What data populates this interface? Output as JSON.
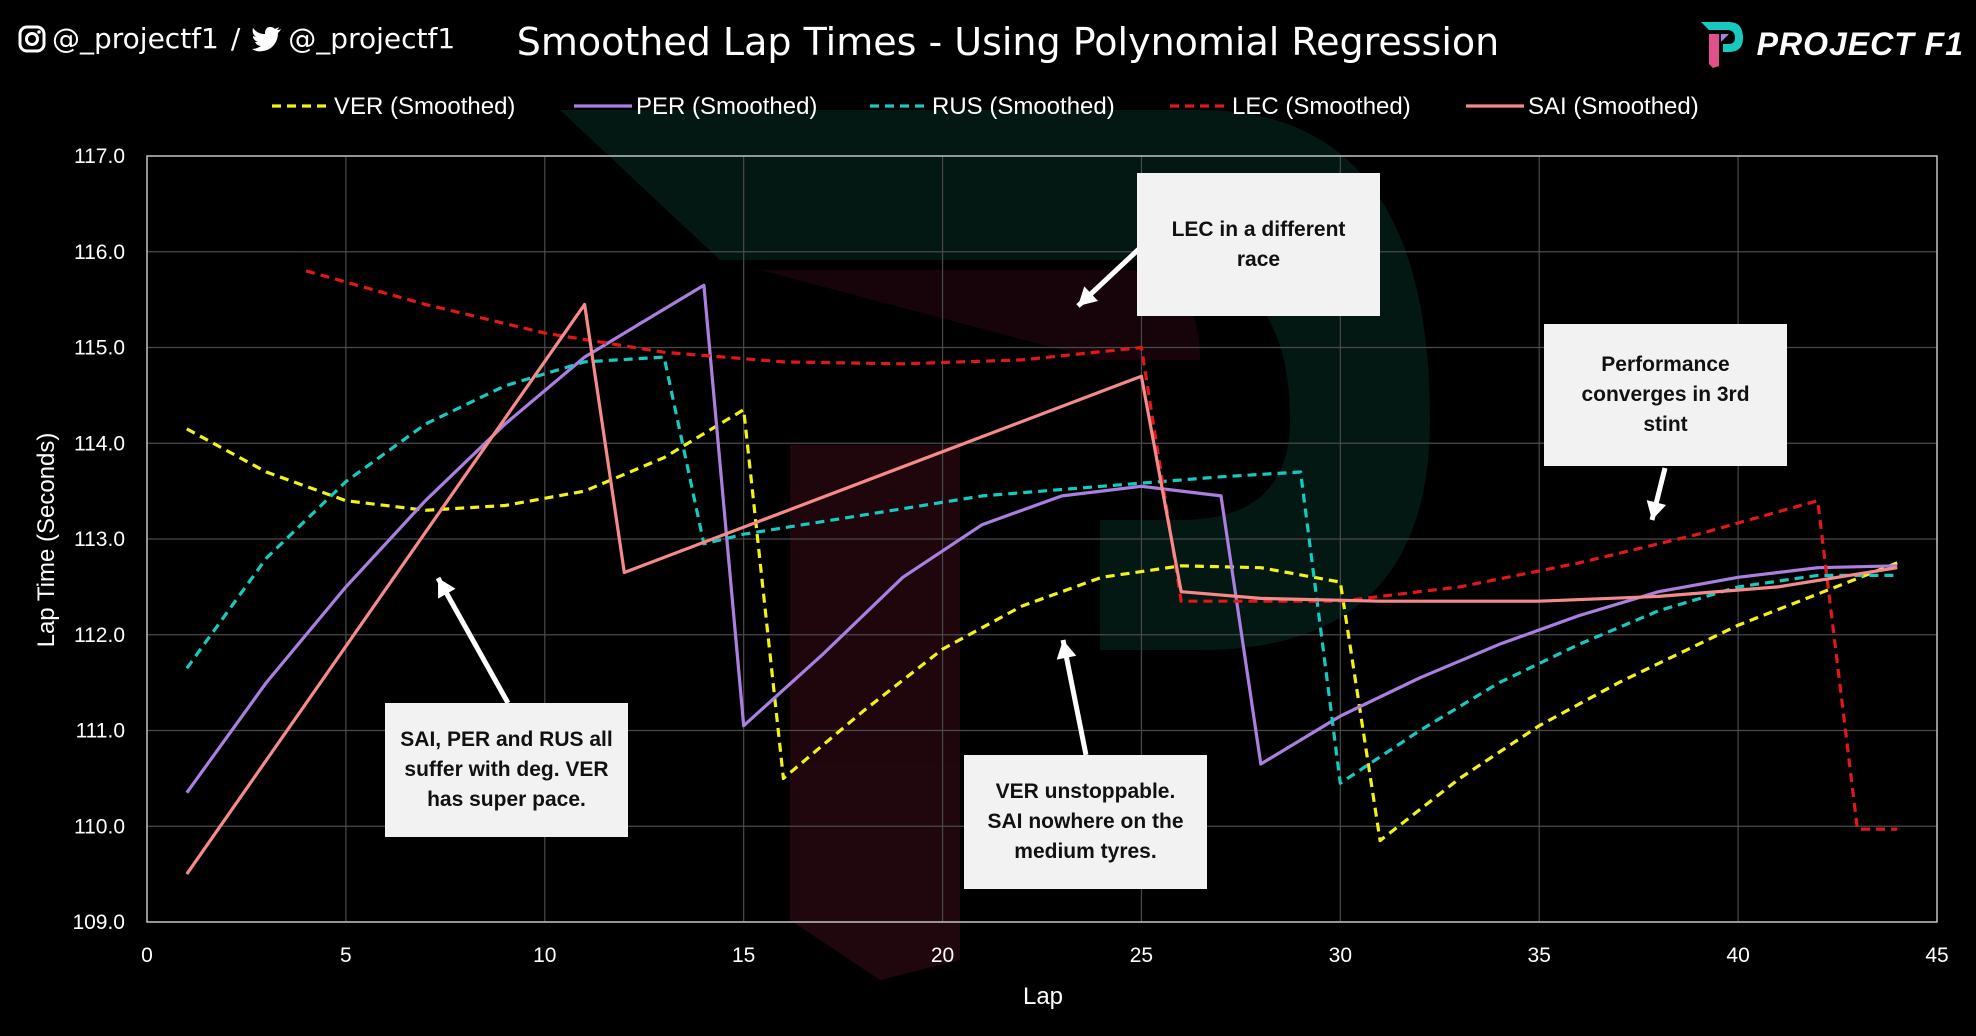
{
  "header": {
    "social_instagram": "@_projectf1",
    "separator": "/",
    "social_twitter": "@_projectf1",
    "brand": "PROJECT F1"
  },
  "colors": {
    "background": "#000000",
    "grid": "#4a4a4a",
    "axis": "#bfbfbf",
    "VER": "#f2f21a",
    "PER": "#a97fe0",
    "RUS": "#17c9bf",
    "LEC": "#e01818",
    "SAI": "#f58a8a"
  },
  "chart_data": {
    "type": "line",
    "title": "Smoothed Lap Times - Using Polynomial Regression",
    "xlabel": "Lap",
    "ylabel": "Lap Time (Seconds)",
    "xlim": [
      0,
      45
    ],
    "ylim": [
      109.0,
      117.0
    ],
    "x_ticks": [
      "0",
      "5",
      "10",
      "15",
      "20",
      "25",
      "30",
      "35",
      "40",
      "45"
    ],
    "y_ticks": [
      "109.0",
      "110.0",
      "111.0",
      "112.0",
      "113.0",
      "114.0",
      "115.0",
      "116.0",
      "117.0"
    ],
    "grid": true,
    "legend_position": "top",
    "series": [
      {
        "name": "VER (Smoothed)",
        "key": "VER",
        "style": "dashed",
        "x": [
          1,
          3,
          5,
          7,
          9,
          11,
          13,
          15,
          16,
          18,
          20,
          22,
          24,
          26,
          28,
          30,
          31,
          33,
          35,
          37,
          40,
          44
        ],
        "y": [
          114.15,
          113.7,
          113.4,
          113.3,
          113.35,
          113.5,
          113.85,
          114.35,
          110.5,
          111.2,
          111.85,
          112.3,
          112.6,
          112.72,
          112.7,
          112.55,
          109.85,
          110.5,
          111.05,
          111.5,
          112.1,
          112.75
        ]
      },
      {
        "name": "PER (Smoothed)",
        "key": "PER",
        "style": "solid",
        "x": [
          1,
          3,
          5,
          7,
          9,
          11,
          12,
          14,
          15,
          17,
          19,
          21,
          23,
          25,
          27,
          28,
          30,
          32,
          34,
          36,
          38,
          40,
          42,
          44
        ],
        "y": [
          110.35,
          111.5,
          112.5,
          113.4,
          114.2,
          114.9,
          115.15,
          115.65,
          111.05,
          111.8,
          112.6,
          113.15,
          113.45,
          113.55,
          113.45,
          110.65,
          111.15,
          111.55,
          111.9,
          112.2,
          112.45,
          112.6,
          112.7,
          112.72
        ]
      },
      {
        "name": "RUS (Smoothed)",
        "key": "RUS",
        "style": "dashed",
        "x": [
          1,
          3,
          5,
          7,
          9,
          11,
          13,
          14,
          15,
          18,
          21,
          24,
          27,
          29,
          30,
          32,
          34,
          36,
          38,
          40,
          42,
          44
        ],
        "y": [
          111.65,
          112.8,
          113.6,
          114.2,
          114.6,
          114.85,
          114.9,
          112.95,
          113.05,
          113.25,
          113.45,
          113.55,
          113.65,
          113.7,
          110.45,
          111.0,
          111.5,
          111.9,
          112.25,
          112.5,
          112.62,
          112.62
        ]
      },
      {
        "name": "LEC (Smoothed)",
        "key": "LEC",
        "style": "dashed",
        "x": [
          4,
          7,
          10,
          13,
          16,
          19,
          22,
          25,
          26,
          30,
          33,
          36,
          39,
          42,
          43,
          44
        ],
        "y": [
          115.8,
          115.45,
          115.15,
          114.95,
          114.85,
          114.83,
          114.87,
          115.0,
          112.35,
          112.35,
          112.5,
          112.75,
          113.05,
          113.4,
          109.97,
          109.97
        ]
      },
      {
        "name": "SAI (Smoothed)",
        "key": "SAI",
        "style": "solid",
        "x": [
          1,
          11,
          12,
          25,
          26,
          28,
          31,
          35,
          38,
          41,
          44
        ],
        "y": [
          109.5,
          115.45,
          112.65,
          114.7,
          112.45,
          112.38,
          112.35,
          112.35,
          112.4,
          112.5,
          112.7
        ]
      }
    ],
    "annotations": [
      {
        "text": "LEC in a different race",
        "lines": [
          "LEC in a different",
          "race"
        ]
      },
      {
        "text": "Performance converges in 3rd stint",
        "lines": [
          "Performance",
          "converges in 3rd",
          "stint"
        ]
      },
      {
        "text": "SAI, PER and RUS all suffer with deg. VER has super pace.",
        "lines": [
          "SAI, PER and RUS all",
          "suffer with deg. VER",
          "has super pace."
        ]
      },
      {
        "text": "VER unstoppable. SAI nowhere on the medium tyres.",
        "lines": [
          "VER unstoppable.",
          "SAI nowhere on the",
          "medium tyres."
        ]
      }
    ]
  }
}
